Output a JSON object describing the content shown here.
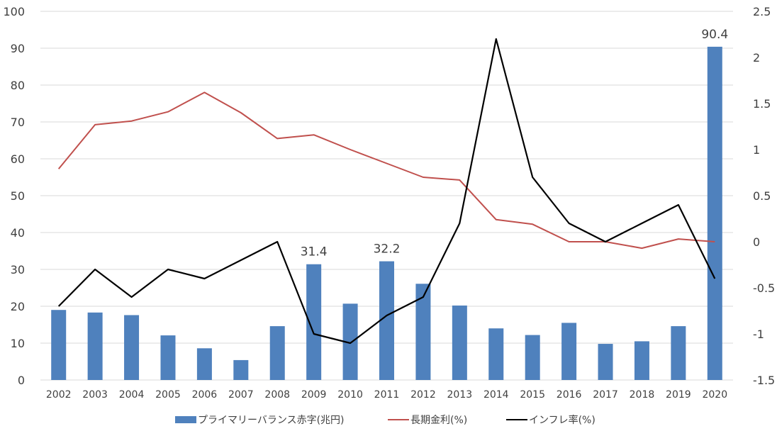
{
  "chart_data": {
    "type": "bar+line",
    "categories": [
      "2002",
      "2003",
      "2004",
      "2005",
      "2006",
      "2007",
      "2008",
      "2009",
      "2010",
      "2011",
      "2012",
      "2013",
      "2014",
      "2015",
      "2016",
      "2017",
      "2018",
      "2019",
      "2020"
    ],
    "left_axis": {
      "min": 0,
      "max": 100,
      "ticks": [
        "0",
        "10",
        "20",
        "30",
        "40",
        "50",
        "60",
        "70",
        "80",
        "90",
        "100"
      ]
    },
    "right_axis": {
      "min": -1.5,
      "max": 2.5,
      "ticks": [
        "-1.5",
        "-1",
        "-0.5",
        "0",
        "0.5",
        "1",
        "1.5",
        "2",
        "2.5"
      ]
    },
    "grid": true,
    "series": [
      {
        "name": "プライマリーバランス赤字(兆円)",
        "kind": "bar",
        "axis": "left",
        "color": "#4f81bd",
        "values": [
          19.0,
          18.3,
          17.6,
          12.1,
          8.6,
          5.4,
          14.6,
          31.4,
          20.7,
          32.2,
          26.1,
          20.2,
          14.0,
          12.2,
          15.5,
          9.8,
          10.5,
          14.6,
          90.4
        ]
      },
      {
        "name": "長期金利(%)",
        "kind": "line",
        "axis": "right",
        "color": "#c0504d",
        "values": [
          0.79,
          1.27,
          1.31,
          1.41,
          1.62,
          1.4,
          1.12,
          1.16,
          1.0,
          0.85,
          0.7,
          0.67,
          0.24,
          0.19,
          0.0,
          0.0,
          -0.07,
          0.03,
          0.0
        ]
      },
      {
        "name": "インフレ率(%)",
        "kind": "line",
        "axis": "right",
        "color": "#000000",
        "values": [
          -0.7,
          -0.3,
          -0.6,
          -0.3,
          -0.4,
          -0.2,
          0.0,
          -1.0,
          -1.1,
          -0.8,
          -0.6,
          0.2,
          2.2,
          0.7,
          0.2,
          0.0,
          0.2,
          0.4,
          -0.4
        ]
      }
    ],
    "data_labels": [
      {
        "category": "2009",
        "text": "31.4"
      },
      {
        "category": "2011",
        "text": "32.2"
      },
      {
        "category": "2020",
        "text": "90.4"
      }
    ],
    "legend": {
      "placement": "bottom",
      "items": [
        "プライマリーバランス赤字(兆円)",
        "長期金利(%)",
        "インフレ率(%)"
      ]
    }
  }
}
